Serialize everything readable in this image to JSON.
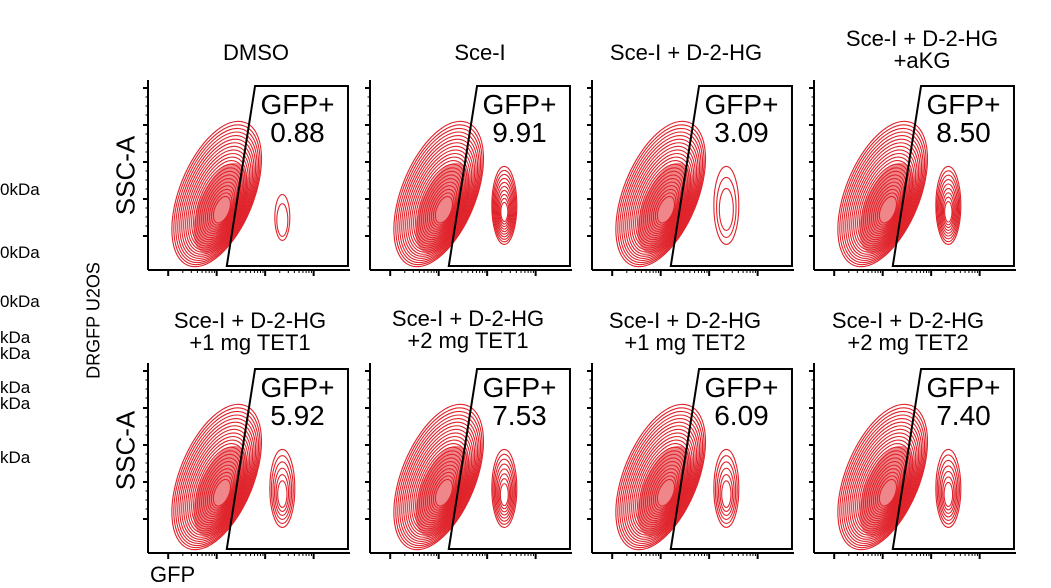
{
  "side_labels": {
    "dataset_label": "DRGFP U2OS",
    "kda_fragments": [
      "0kDa",
      "0kDa",
      "0kDa",
      "kDa",
      "kDa",
      "kDa",
      "kDa",
      "kDa"
    ]
  },
  "chart_data": {
    "type": "flow-cytometry-contour-grid",
    "ylabel": "SSC-A",
    "xlabel": "GFP",
    "gate_label": "GFP+",
    "panels": [
      {
        "title": [
          "DMSO"
        ],
        "gfp_percent": "0.88"
      },
      {
        "title": [
          "Sce-I"
        ],
        "gfp_percent": "9.91"
      },
      {
        "title": [
          "Sce-I + D-2-HG"
        ],
        "gfp_percent": "3.09"
      },
      {
        "title": [
          "Sce-I + D-2-HG",
          "+aKG"
        ],
        "gfp_percent": "8.50"
      },
      {
        "title": [
          "Sce-I + D-2-HG",
          "+1 mg TET1"
        ],
        "gfp_percent": "5.92"
      },
      {
        "title": [
          "Sce-I + D-2-HG",
          "+2 mg TET1"
        ],
        "gfp_percent": "7.53"
      },
      {
        "title": [
          "Sce-I + D-2-HG",
          "+1 mg TET2"
        ],
        "gfp_percent": "6.09"
      },
      {
        "title": [
          "Sce-I + D-2-HG",
          "+2 mg TET2"
        ],
        "gfp_percent": "7.40"
      }
    ],
    "colors": {
      "contour": "#e0222a",
      "gate": "#000000"
    }
  }
}
